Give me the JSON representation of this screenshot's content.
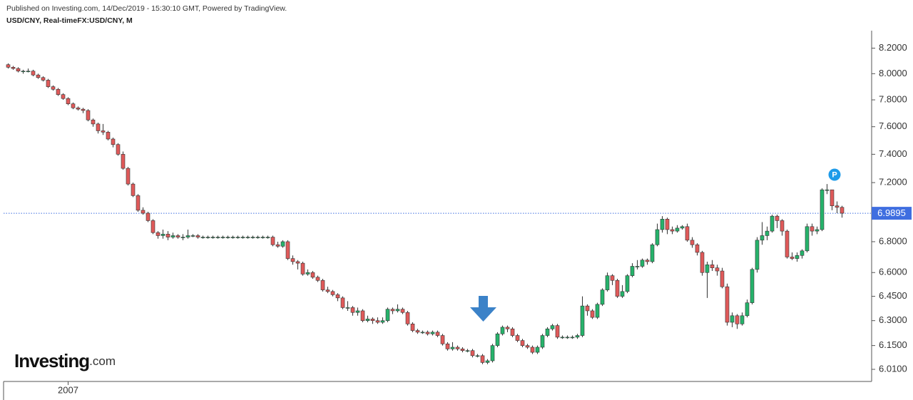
{
  "header": {
    "published": "Published on Investing.com, 14/Dec/2019 - 15:30:10 GMT, Powered by TradingView.",
    "symbol": "USD/CNY, Real-timeFX:USD/CNY, M"
  },
  "logo": {
    "brand": "Investing",
    "suffix": ".com"
  },
  "chart_data": {
    "type": "candlestick",
    "categories": [
      null,
      null,
      null,
      null,
      null,
      null,
      null,
      null,
      null,
      null,
      null,
      null,
      "2007",
      null,
      null,
      null,
      null,
      null,
      null,
      null,
      null,
      null,
      null,
      null,
      null,
      null,
      null,
      null,
      null,
      null,
      null,
      null,
      null,
      null,
      null,
      null,
      null,
      null,
      null,
      null,
      null,
      null,
      null,
      null,
      null,
      null,
      null,
      null,
      null,
      null,
      null,
      null,
      null,
      null,
      null,
      null,
      null,
      null,
      null,
      null,
      null,
      null,
      null,
      null,
      null,
      null,
      null,
      null,
      null,
      null,
      null,
      null,
      null,
      null,
      null,
      null,
      null,
      null,
      null,
      null,
      null,
      null,
      null,
      null,
      null,
      null,
      null,
      null,
      null,
      null,
      null,
      null,
      null,
      null,
      null,
      null,
      null,
      null,
      null,
      null,
      null,
      null,
      null,
      null,
      null,
      null,
      null,
      null,
      null,
      null,
      null,
      null,
      null,
      null,
      null,
      null,
      null,
      null,
      null,
      null,
      null,
      null,
      null,
      null,
      null,
      null,
      null,
      null,
      null,
      null,
      null,
      null,
      null,
      null,
      null,
      null,
      null,
      null,
      null,
      null,
      null,
      null,
      null,
      null,
      null,
      null,
      null,
      null,
      null,
      null,
      null,
      null,
      null,
      null,
      null,
      null,
      null,
      null,
      null,
      null,
      null,
      null,
      null,
      null,
      null,
      null,
      null,
      null
    ],
    "open": [
      8.07,
      8.05,
      8.04,
      8.02,
      8.02,
      8.02,
      7.99,
      7.97,
      7.95,
      7.9,
      7.88,
      7.84,
      7.81,
      7.77,
      7.74,
      7.73,
      7.72,
      7.65,
      7.62,
      7.57,
      7.56,
      7.51,
      7.47,
      7.4,
      7.3,
      7.19,
      7.11,
      7.01,
      6.99,
      6.94,
      6.86,
      6.84,
      6.85,
      6.83,
      6.84,
      6.83,
      6.83,
      6.84,
      6.84,
      6.83,
      6.83,
      6.83,
      6.83,
      6.83,
      6.83,
      6.83,
      6.83,
      6.83,
      6.83,
      6.83,
      6.83,
      6.83,
      6.83,
      6.83,
      6.78,
      6.77,
      6.8,
      6.69,
      6.67,
      6.66,
      6.59,
      6.6,
      6.57,
      6.55,
      6.49,
      6.48,
      6.46,
      6.44,
      6.38,
      6.38,
      6.35,
      6.36,
      6.3,
      6.31,
      6.3,
      6.29,
      6.3,
      6.37,
      6.36,
      6.37,
      6.35,
      6.28,
      6.24,
      6.23,
      6.23,
      6.22,
      6.23,
      6.21,
      6.16,
      6.13,
      6.14,
      6.13,
      6.12,
      6.12,
      6.09,
      6.09,
      6.05,
      6.06,
      6.15,
      6.22,
      6.26,
      6.25,
      6.21,
      6.18,
      6.15,
      6.14,
      6.11,
      6.14,
      6.21,
      6.25,
      6.27,
      6.2,
      6.2,
      6.2,
      6.2,
      6.21,
      6.39,
      6.36,
      6.32,
      6.4,
      6.49,
      6.58,
      6.55,
      6.45,
      6.48,
      6.58,
      6.64,
      6.64,
      6.68,
      6.67,
      6.78,
      6.88,
      6.95,
      6.88,
      6.87,
      6.89,
      6.9,
      6.81,
      6.78,
      6.73,
      6.6,
      6.65,
      6.63,
      6.61,
      6.51,
      6.29,
      6.33,
      6.28,
      6.33,
      6.41,
      6.62,
      6.81,
      6.84,
      6.87,
      6.97,
      6.94,
      6.87,
      6.7,
      6.69,
      6.71,
      6.74,
      6.9,
      6.87,
      6.88,
      7.15,
      7.15,
      7.04,
      7.03
    ],
    "high": [
      8.08,
      8.06,
      8.05,
      8.03,
      8.04,
      8.03,
      8.0,
      7.98,
      7.96,
      7.91,
      7.89,
      7.85,
      7.82,
      7.78,
      7.75,
      7.74,
      7.73,
      7.66,
      7.63,
      7.62,
      7.57,
      7.52,
      7.48,
      7.42,
      7.31,
      7.2,
      7.12,
      7.03,
      7.0,
      6.95,
      6.87,
      6.88,
      6.87,
      6.86,
      6.85,
      6.85,
      6.88,
      6.85,
      6.85,
      6.84,
      6.84,
      6.84,
      6.84,
      6.84,
      6.84,
      6.84,
      6.84,
      6.84,
      6.84,
      6.84,
      6.84,
      6.84,
      6.84,
      6.84,
      6.8,
      6.81,
      6.81,
      6.71,
      6.68,
      6.67,
      6.62,
      6.61,
      6.58,
      6.56,
      6.51,
      6.49,
      6.47,
      6.45,
      6.42,
      6.39,
      6.38,
      6.37,
      6.33,
      6.32,
      6.32,
      6.32,
      6.38,
      6.38,
      6.4,
      6.38,
      6.36,
      6.29,
      6.25,
      6.24,
      6.24,
      6.24,
      6.24,
      6.22,
      6.17,
      6.17,
      6.15,
      6.14,
      6.13,
      6.13,
      6.1,
      6.1,
      6.07,
      6.16,
      6.23,
      6.27,
      6.27,
      6.26,
      6.22,
      6.19,
      6.16,
      6.15,
      6.15,
      6.22,
      6.26,
      6.28,
      6.28,
      6.21,
      6.21,
      6.21,
      6.22,
      6.45,
      6.4,
      6.37,
      6.41,
      6.5,
      6.6,
      6.59,
      6.56,
      6.52,
      6.59,
      6.66,
      6.68,
      6.69,
      6.69,
      6.79,
      6.92,
      6.97,
      6.96,
      6.9,
      6.91,
      6.91,
      6.92,
      6.83,
      6.79,
      6.74,
      6.67,
      6.68,
      6.65,
      6.63,
      6.53,
      6.35,
      6.34,
      6.35,
      6.43,
      6.63,
      6.83,
      6.93,
      6.9,
      6.98,
      6.98,
      6.95,
      6.88,
      6.73,
      6.73,
      6.75,
      6.92,
      6.92,
      6.9,
      7.16,
      7.19,
      7.15,
      7.07,
      7.04
    ],
    "low": [
      8.04,
      8.03,
      8.01,
      8.0,
      8.01,
      7.98,
      7.96,
      7.94,
      7.89,
      7.87,
      7.83,
      7.8,
      7.76,
      7.73,
      7.72,
      7.7,
      7.64,
      7.6,
      7.55,
      7.54,
      7.5,
      7.45,
      7.39,
      7.29,
      7.18,
      7.1,
      7.0,
      6.98,
      6.93,
      6.85,
      6.82,
      6.82,
      6.81,
      6.82,
      6.82,
      6.81,
      6.82,
      6.83,
      6.82,
      6.82,
      6.82,
      6.82,
      6.82,
      6.82,
      6.82,
      6.82,
      6.82,
      6.82,
      6.82,
      6.82,
      6.82,
      6.82,
      6.82,
      6.77,
      6.76,
      6.76,
      6.68,
      6.65,
      6.62,
      6.58,
      6.58,
      6.56,
      6.54,
      6.48,
      6.47,
      6.45,
      6.42,
      6.37,
      6.36,
      6.33,
      6.33,
      6.29,
      6.29,
      6.28,
      6.28,
      6.28,
      6.29,
      6.34,
      6.35,
      6.34,
      6.27,
      6.23,
      6.22,
      6.22,
      6.21,
      6.21,
      6.2,
      6.15,
      6.12,
      6.12,
      6.12,
      6.11,
      6.11,
      6.08,
      6.08,
      6.04,
      6.04,
      6.05,
      6.14,
      6.21,
      6.23,
      6.2,
      6.17,
      6.14,
      6.13,
      6.1,
      6.1,
      6.13,
      6.2,
      6.24,
      6.19,
      6.19,
      6.19,
      6.19,
      6.19,
      6.2,
      6.33,
      6.31,
      6.31,
      6.39,
      6.48,
      6.52,
      6.44,
      6.44,
      6.47,
      6.57,
      6.62,
      6.63,
      6.65,
      6.66,
      6.77,
      6.86,
      6.85,
      6.85,
      6.86,
      6.88,
      6.8,
      6.76,
      6.71,
      6.58,
      6.44,
      6.61,
      6.58,
      6.5,
      6.27,
      6.26,
      6.25,
      6.27,
      6.32,
      6.4,
      6.6,
      6.78,
      6.81,
      6.86,
      6.89,
      6.84,
      6.69,
      6.68,
      6.67,
      6.69,
      6.73,
      6.84,
      6.85,
      6.87,
      7.12,
      7.01,
      6.99,
      6.96
    ],
    "close": [
      8.05,
      8.04,
      8.02,
      8.02,
      8.02,
      7.99,
      7.97,
      7.95,
      7.9,
      7.88,
      7.84,
      7.81,
      7.77,
      7.74,
      7.73,
      7.72,
      7.65,
      7.62,
      7.57,
      7.56,
      7.51,
      7.47,
      7.4,
      7.3,
      7.19,
      7.11,
      7.01,
      6.99,
      6.94,
      6.86,
      6.84,
      6.85,
      6.83,
      6.84,
      6.83,
      6.83,
      6.84,
      6.84,
      6.83,
      6.83,
      6.83,
      6.83,
      6.83,
      6.83,
      6.83,
      6.83,
      6.83,
      6.83,
      6.83,
      6.83,
      6.83,
      6.83,
      6.83,
      6.78,
      6.77,
      6.8,
      6.69,
      6.67,
      6.66,
      6.59,
      6.6,
      6.57,
      6.55,
      6.49,
      6.48,
      6.46,
      6.44,
      6.38,
      6.38,
      6.35,
      6.36,
      6.3,
      6.31,
      6.3,
      6.29,
      6.3,
      6.37,
      6.36,
      6.37,
      6.35,
      6.28,
      6.24,
      6.23,
      6.23,
      6.22,
      6.23,
      6.21,
      6.16,
      6.13,
      6.14,
      6.13,
      6.12,
      6.12,
      6.09,
      6.09,
      6.05,
      6.06,
      6.15,
      6.22,
      6.26,
      6.25,
      6.21,
      6.18,
      6.15,
      6.14,
      6.11,
      6.14,
      6.21,
      6.25,
      6.27,
      6.2,
      6.2,
      6.2,
      6.2,
      6.21,
      6.39,
      6.36,
      6.32,
      6.4,
      6.49,
      6.58,
      6.55,
      6.45,
      6.48,
      6.58,
      6.64,
      6.64,
      6.68,
      6.67,
      6.78,
      6.88,
      6.95,
      6.88,
      6.87,
      6.89,
      6.9,
      6.81,
      6.78,
      6.73,
      6.6,
      6.65,
      6.63,
      6.61,
      6.51,
      6.29,
      6.33,
      6.28,
      6.33,
      6.41,
      6.62,
      6.81,
      6.84,
      6.87,
      6.97,
      6.94,
      6.87,
      6.7,
      6.69,
      6.71,
      6.74,
      6.9,
      6.87,
      6.88,
      7.15,
      7.15,
      7.04,
      7.03,
      6.99
    ],
    "up_color": "#26b36b",
    "down_color": "#e05a5a",
    "border_color": "#333333",
    "log_scale": true,
    "ylim": [
      5.94,
      8.34
    ],
    "yticks": [
      {
        "value": 8.2,
        "label": "8.2000"
      },
      {
        "value": 8.0,
        "label": "8.0000"
      },
      {
        "value": 7.8,
        "label": "7.8000"
      },
      {
        "value": 7.6,
        "label": "7.6000"
      },
      {
        "value": 7.4,
        "label": "7.4000"
      },
      {
        "value": 7.2,
        "label": "7.2000"
      },
      {
        "value": 6.8,
        "label": "6.8000"
      },
      {
        "value": 6.6,
        "label": "6.6000"
      },
      {
        "value": 6.45,
        "label": "6.4500"
      },
      {
        "value": 6.3,
        "label": "6.3000"
      },
      {
        "value": 6.15,
        "label": "6.1500"
      },
      {
        "value": 6.01,
        "label": "6.0100"
      }
    ],
    "last_price": 6.9895,
    "last_price_color": "#3f6ee0",
    "marker_label": "P"
  }
}
